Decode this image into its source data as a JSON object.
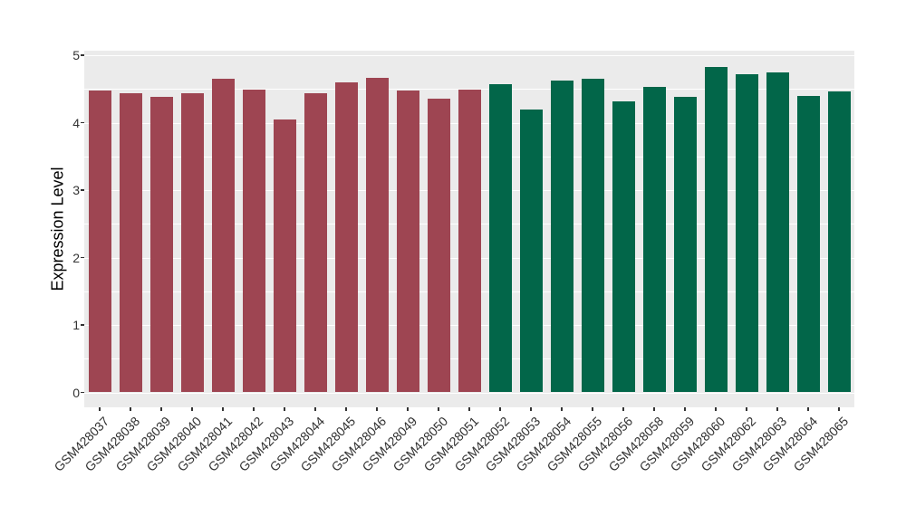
{
  "chart_data": {
    "type": "bar",
    "title": "",
    "xlabel": "",
    "ylabel": "Expression Level",
    "ylim": [
      0,
      5
    ],
    "yticks": [
      "0",
      "1",
      "2",
      "3",
      "4",
      "5"
    ],
    "legend": "none",
    "grid": {
      "major": "on",
      "minor": "on"
    },
    "group_colors": {
      "group1": "#9E4552",
      "group2": "#026649"
    },
    "panel_bg": "#EBEBEB",
    "gridline_color": "#FFFFFF",
    "bars": [
      {
        "label": "GSM428037",
        "value": 4.48,
        "group": "group1"
      },
      {
        "label": "GSM428038",
        "value": 4.44,
        "group": "group1"
      },
      {
        "label": "GSM428039",
        "value": 4.38,
        "group": "group1"
      },
      {
        "label": "GSM428040",
        "value": 4.43,
        "group": "group1"
      },
      {
        "label": "GSM428041",
        "value": 4.65,
        "group": "group1"
      },
      {
        "label": "GSM428042",
        "value": 4.49,
        "group": "group1"
      },
      {
        "label": "GSM428043",
        "value": 4.05,
        "group": "group1"
      },
      {
        "label": "GSM428044",
        "value": 4.44,
        "group": "group1"
      },
      {
        "label": "GSM428045",
        "value": 4.6,
        "group": "group1"
      },
      {
        "label": "GSM428046",
        "value": 4.67,
        "group": "group1"
      },
      {
        "label": "GSM428049",
        "value": 4.48,
        "group": "group1"
      },
      {
        "label": "GSM428050",
        "value": 4.35,
        "group": "group1"
      },
      {
        "label": "GSM428051",
        "value": 4.49,
        "group": "group1"
      },
      {
        "label": "GSM428052",
        "value": 4.57,
        "group": "group2"
      },
      {
        "label": "GSM428053",
        "value": 4.19,
        "group": "group2"
      },
      {
        "label": "GSM428054",
        "value": 4.63,
        "group": "group2"
      },
      {
        "label": "GSM428055",
        "value": 4.65,
        "group": "group2"
      },
      {
        "label": "GSM428056",
        "value": 4.31,
        "group": "group2"
      },
      {
        "label": "GSM428058",
        "value": 4.53,
        "group": "group2"
      },
      {
        "label": "GSM428059",
        "value": 4.38,
        "group": "group2"
      },
      {
        "label": "GSM428060",
        "value": 4.82,
        "group": "group2"
      },
      {
        "label": "GSM428062",
        "value": 4.72,
        "group": "group2"
      },
      {
        "label": "GSM428063",
        "value": 4.74,
        "group": "group2"
      },
      {
        "label": "GSM428064",
        "value": 4.4,
        "group": "group2"
      },
      {
        "label": "GSM428065",
        "value": 4.46,
        "group": "group2"
      }
    ]
  }
}
